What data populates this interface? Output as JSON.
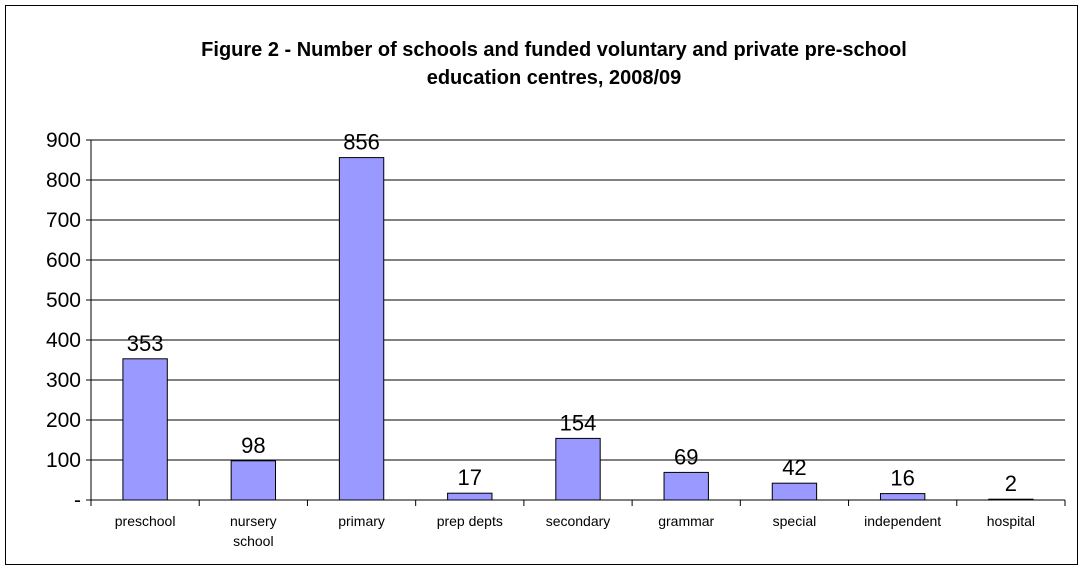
{
  "chart_data": {
    "type": "bar",
    "title_lines": [
      "Figure 2 - Number of schools and funded voluntary and private pre-school",
      "education centres, 2008/09"
    ],
    "categories": [
      [
        "preschool"
      ],
      [
        "nursery",
        "school"
      ],
      [
        "primary"
      ],
      [
        "prep depts"
      ],
      [
        "secondary"
      ],
      [
        "grammar"
      ],
      [
        "special"
      ],
      [
        "independent"
      ],
      [
        "hospital"
      ]
    ],
    "values": [
      353,
      98,
      856,
      17,
      154,
      69,
      42,
      16,
      2
    ],
    "data_labels": [
      "353",
      "98",
      "856",
      "17",
      "154",
      "69",
      "42",
      "16",
      "2"
    ],
    "y_ticks": [
      0,
      100,
      200,
      300,
      400,
      500,
      600,
      700,
      800,
      900
    ],
    "y_tick_labels": [
      "-",
      "100",
      "200",
      "300",
      "400",
      "500",
      "600",
      "700",
      "800",
      "900"
    ],
    "ylim": [
      0,
      900
    ],
    "grid": true,
    "legend": "none",
    "bar_color": "#9999ff",
    "xlabel": "",
    "ylabel": ""
  }
}
